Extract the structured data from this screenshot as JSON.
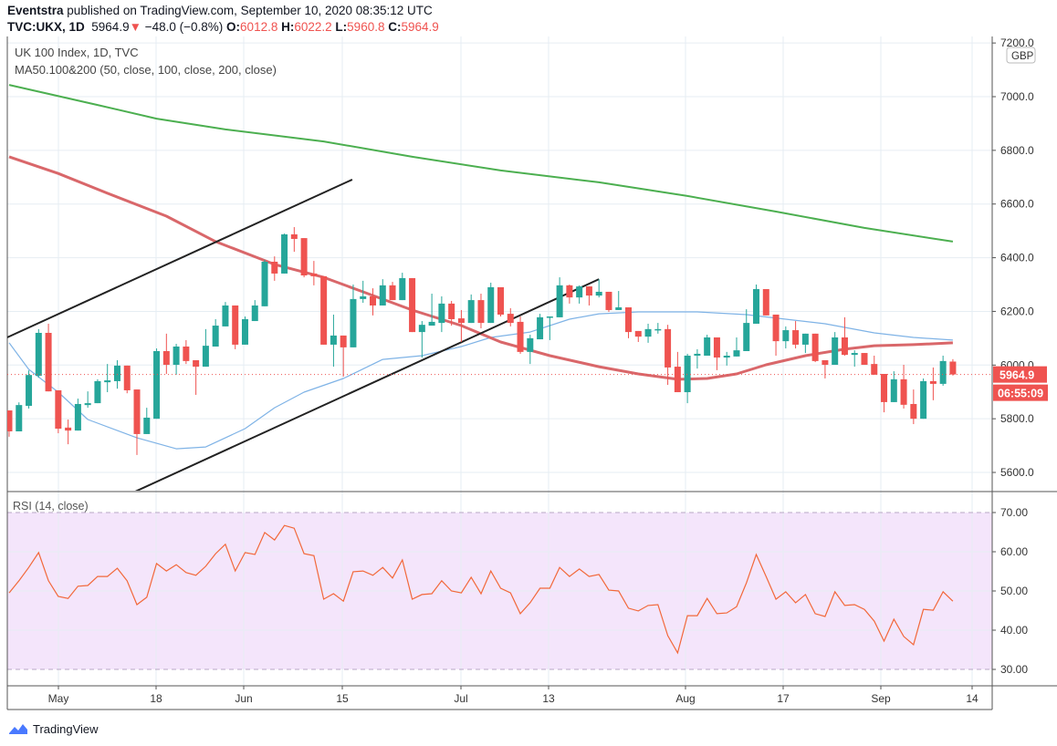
{
  "header": {
    "author": "Eventstra",
    "published_text": "published on TradingView.com, September 10, 2020 08:35:12 UTC",
    "symbol": "TVC:UKX, 1D",
    "last": "5964.9",
    "change": "−48.0 (−0.8%)",
    "o_label": "O:",
    "o": "6012.8",
    "h_label": "H:",
    "h": "6022.2",
    "l_label": "L:",
    "l": "5960.8",
    "c_label": "C:",
    "c": "5964.9"
  },
  "legend": {
    "title": "UK 100 Index, 1D, TVC",
    "indicator": "MA50.100&200 (50, close, 100, close, 200, close)",
    "rsi": "RSI (14, close)"
  },
  "footer": {
    "brand": "TradingView"
  },
  "colors": {
    "up": "#26a69a",
    "down": "#ef5350",
    "ma50": "#7fb3e6",
    "ma100": "#d9676a",
    "ma200": "#4caf50",
    "rsi": "#f2683a",
    "rsi_band": "#f4e5fb",
    "grid": "#e6edf3",
    "trend": "#222222"
  },
  "chart_data": {
    "type": "candlestick",
    "title": "UK 100 Index, 1D, TVC",
    "currency": "GBP",
    "price_axis": {
      "ylim": [
        5530,
        7230
      ],
      "ticks": [
        "7200.0",
        "7000.0",
        "6800.0",
        "6600.0",
        "6400.0",
        "6200.0",
        "6000.0",
        "5800.0",
        "5600.0"
      ]
    },
    "last_price_label": "5964.9",
    "countdown_label": "06:55:09",
    "x_ticks": [
      "May",
      "18",
      "Jun",
      "15",
      "Jul",
      "13",
      "Aug",
      "17",
      "Sep",
      "14"
    ],
    "ohlc": [
      [
        5831,
        5831,
        5733,
        5753
      ],
      [
        5753,
        5861,
        5753,
        5851
      ],
      [
        5848,
        5980,
        5838,
        5963
      ],
      [
        5960,
        6134,
        5953,
        6120
      ],
      [
        6120,
        6154,
        5902,
        5902
      ],
      [
        5906,
        5906,
        5746,
        5763
      ],
      [
        5767,
        5797,
        5705,
        5756
      ],
      [
        5756,
        5875,
        5756,
        5855
      ],
      [
        5851,
        5902,
        5841,
        5858
      ],
      [
        5858,
        5947,
        5858,
        5940
      ],
      [
        5936,
        6004,
        5899,
        5943
      ],
      [
        5940,
        6018,
        5912,
        5998
      ],
      [
        5998,
        5998,
        5895,
        5906
      ],
      [
        5909,
        5909,
        5665,
        5743
      ],
      [
        5743,
        5841,
        5743,
        5804
      ],
      [
        5800,
        6062,
        5800,
        6052
      ],
      [
        6052,
        6117,
        5967,
        6001
      ],
      [
        6001,
        6079,
        5964,
        6069
      ],
      [
        6069,
        6093,
        6004,
        6015
      ],
      [
        6018,
        6018,
        5889,
        5994
      ],
      [
        5994,
        6134,
        5994,
        6072
      ],
      [
        6069,
        6171,
        6069,
        6147
      ],
      [
        6144,
        6235,
        6144,
        6222
      ],
      [
        6222,
        6222,
        6059,
        6076
      ],
      [
        6076,
        6181,
        6076,
        6171
      ],
      [
        6164,
        6242,
        6164,
        6222
      ],
      [
        6219,
        6392,
        6219,
        6385
      ],
      [
        6385,
        6405,
        6314,
        6341
      ],
      [
        6341,
        6490,
        6341,
        6487
      ],
      [
        6487,
        6514,
        6422,
        6470
      ],
      [
        6473,
        6473,
        6327,
        6334
      ],
      [
        6341,
        6388,
        6297,
        6331
      ],
      [
        6331,
        6331,
        6076,
        6076
      ],
      [
        6076,
        6188,
        5994,
        6110
      ],
      [
        6110,
        6110,
        5957,
        6066
      ],
      [
        6066,
        6300,
        6066,
        6246
      ],
      [
        6246,
        6314,
        6232,
        6256
      ],
      [
        6256,
        6286,
        6185,
        6222
      ],
      [
        6222,
        6320,
        6222,
        6297
      ],
      [
        6297,
        6310,
        6242,
        6242
      ],
      [
        6242,
        6344,
        6242,
        6324
      ],
      [
        6324,
        6324,
        6123,
        6123
      ],
      [
        6123,
        6164,
        6028,
        6150
      ],
      [
        6147,
        6266,
        6147,
        6161
      ],
      [
        6157,
        6256,
        6123,
        6229
      ],
      [
        6229,
        6239,
        6147,
        6171
      ],
      [
        6174,
        6205,
        6086,
        6157
      ],
      [
        6157,
        6263,
        6157,
        6242
      ],
      [
        6242,
        6266,
        6137,
        6157
      ],
      [
        6157,
        6307,
        6157,
        6290
      ],
      [
        6290,
        6290,
        6181,
        6188
      ],
      [
        6191,
        6212,
        6144,
        6157
      ],
      [
        6161,
        6181,
        6042,
        6049
      ],
      [
        6049,
        6113,
        6004,
        6100
      ],
      [
        6096,
        6191,
        6096,
        6178
      ],
      [
        6178,
        6181,
        6093,
        6181
      ],
      [
        6178,
        6327,
        6178,
        6297
      ],
      [
        6297,
        6300,
        6229,
        6252
      ],
      [
        6252,
        6297,
        6229,
        6293
      ],
      [
        6293,
        6293,
        6222,
        6259
      ],
      [
        6259,
        6320,
        6252,
        6273
      ],
      [
        6273,
        6273,
        6198,
        6205
      ],
      [
        6205,
        6276,
        6205,
        6215
      ],
      [
        6215,
        6215,
        6100,
        6123
      ],
      [
        6127,
        6127,
        6086,
        6106
      ],
      [
        6106,
        6154,
        6083,
        6134
      ],
      [
        6130,
        6157,
        6117,
        6134
      ],
      [
        6134,
        6150,
        5926,
        5991
      ],
      [
        5994,
        6049,
        5899,
        5899
      ],
      [
        5899,
        6042,
        5858,
        6035
      ],
      [
        6035,
        6059,
        5987,
        6042
      ],
      [
        6035,
        6113,
        6035,
        6103
      ],
      [
        6103,
        6103,
        5981,
        6028
      ],
      [
        6028,
        6049,
        5998,
        6035
      ],
      [
        6032,
        6103,
        6032,
        6055
      ],
      [
        6052,
        6208,
        6052,
        6157
      ],
      [
        6154,
        6300,
        6154,
        6283
      ],
      [
        6283,
        6283,
        6185,
        6185
      ],
      [
        6188,
        6188,
        6035,
        6089
      ],
      [
        6089,
        6144,
        6062,
        6130
      ],
      [
        6130,
        6164,
        6062,
        6076
      ],
      [
        6076,
        6117,
        6045,
        6117
      ],
      [
        6117,
        6117,
        6011,
        6015
      ],
      [
        6018,
        6018,
        5950,
        6001
      ],
      [
        6001,
        6123,
        6001,
        6103
      ],
      [
        6103,
        6178,
        6035,
        6038
      ],
      [
        6038,
        6055,
        5994,
        6045
      ],
      [
        6045,
        6045,
        6001,
        6001
      ],
      [
        6004,
        6035,
        5964,
        5964
      ],
      [
        5967,
        5967,
        5824,
        5862
      ],
      [
        5862,
        5977,
        5862,
        5947
      ],
      [
        5947,
        6001,
        5838,
        5852
      ],
      [
        5855,
        5909,
        5780,
        5800
      ],
      [
        5800,
        5950,
        5800,
        5940
      ],
      [
        5940,
        5991,
        5869,
        5930
      ],
      [
        5930,
        6035,
        5923,
        6015
      ],
      [
        6013,
        6022,
        5961,
        5965
      ]
    ],
    "moving_averages": [
      {
        "name": "MA50",
        "points": [
          [
            0,
            6083
          ],
          [
            2,
            5984
          ],
          [
            5,
            5899
          ],
          [
            8,
            5797
          ],
          [
            13,
            5729
          ],
          [
            17,
            5688
          ],
          [
            20,
            5695
          ],
          [
            24,
            5763
          ],
          [
            27,
            5841
          ],
          [
            30,
            5899
          ],
          [
            34,
            5950
          ],
          [
            38,
            6021
          ],
          [
            42,
            6035
          ],
          [
            46,
            6069
          ],
          [
            49,
            6103
          ],
          [
            53,
            6123
          ],
          [
            57,
            6171
          ],
          [
            60,
            6191
          ],
          [
            64,
            6198
          ],
          [
            70,
            6198
          ],
          [
            75,
            6188
          ],
          [
            79,
            6171
          ],
          [
            83,
            6154
          ],
          [
            88,
            6120
          ],
          [
            92,
            6103
          ],
          [
            96,
            6093
          ]
        ]
      },
      {
        "name": "MA100",
        "points": [
          [
            0,
            6776
          ],
          [
            5,
            6714
          ],
          [
            10,
            6640
          ],
          [
            16,
            6555
          ],
          [
            21,
            6460
          ],
          [
            27,
            6375
          ],
          [
            32,
            6327
          ],
          [
            36,
            6273
          ],
          [
            41,
            6205
          ],
          [
            46,
            6147
          ],
          [
            50,
            6086
          ],
          [
            55,
            6035
          ],
          [
            60,
            5994
          ],
          [
            64,
            5967
          ],
          [
            68,
            5947
          ],
          [
            71,
            5950
          ],
          [
            74,
            5967
          ],
          [
            77,
            6001
          ],
          [
            81,
            6035
          ],
          [
            85,
            6059
          ],
          [
            88,
            6072
          ],
          [
            92,
            6076
          ],
          [
            96,
            6083
          ]
        ]
      },
      {
        "name": "MA200",
        "points": [
          [
            0,
            7044
          ],
          [
            9,
            6969
          ],
          [
            15,
            6918
          ],
          [
            22,
            6878
          ],
          [
            32,
            6833
          ],
          [
            41,
            6776
          ],
          [
            50,
            6725
          ],
          [
            60,
            6681
          ],
          [
            69,
            6630
          ],
          [
            78,
            6572
          ],
          [
            87,
            6511
          ],
          [
            96,
            6460
          ]
        ]
      }
    ],
    "trendlines": [
      {
        "from": [
          -0.2,
          6103
        ],
        "to": [
          34.9,
          6691
        ]
      },
      {
        "from": [
          12.6,
          5525
        ],
        "to": [
          60,
          6320
        ]
      }
    ],
    "rsi": {
      "title": "RSI (14, close)",
      "ylim": [
        25,
        72
      ],
      "band": [
        30,
        70
      ],
      "ticks": [
        "70.00",
        "60.00",
        "50.00",
        "40.00",
        "30.00"
      ],
      "values": [
        49.5,
        52.6,
        56,
        59.8,
        52.6,
        48.6,
        48.1,
        51.2,
        51.4,
        53.7,
        53.7,
        55.8,
        52.6,
        46.5,
        48.4,
        57,
        55.1,
        56.7,
        54.7,
        54,
        56.3,
        59.5,
        61.9,
        55.1,
        59.8,
        59.3,
        64.9,
        63,
        66.7,
        66,
        59.5,
        59,
        47.9,
        49.3,
        47.4,
        54.9,
        55.1,
        54,
        56,
        53.3,
        57.9,
        47.9,
        49.1,
        49.3,
        52.6,
        50,
        49.5,
        53.5,
        49.3,
        55.1,
        50.7,
        49.5,
        44.2,
        47,
        50.7,
        50.7,
        56,
        53.7,
        55.6,
        53.7,
        54.2,
        50.2,
        50,
        45.6,
        44.9,
        46.3,
        46.5,
        38.6,
        34.2,
        43.7,
        43.7,
        48.1,
        44.2,
        44.4,
        46,
        52.1,
        59.3,
        53.7,
        47.9,
        49.8,
        47,
        49.1,
        44.2,
        43.5,
        49.8,
        46.3,
        46.5,
        45.3,
        42.3,
        37.2,
        42.8,
        38.4,
        36.3,
        45.3,
        45.1,
        49.8,
        47.4
      ]
    }
  }
}
